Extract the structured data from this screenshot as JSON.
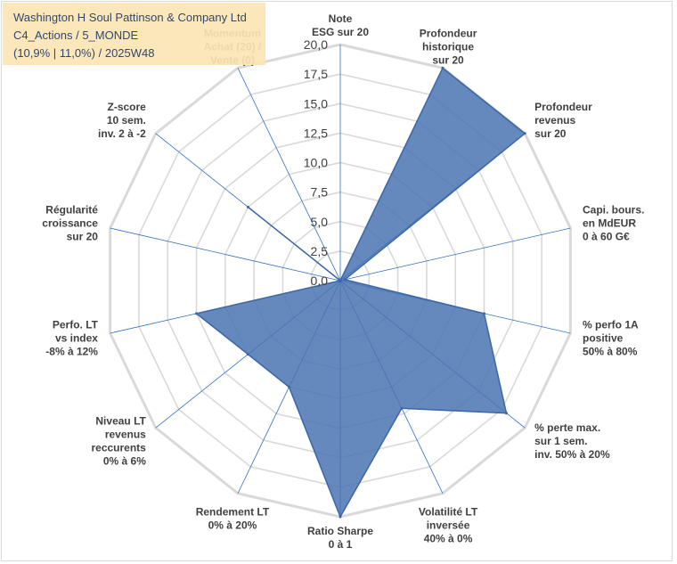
{
  "title": {
    "line1": "Washington H Soul Pattinson & Company Ltd",
    "line2": "C4_Actions / 5_MONDE",
    "line3": "(10,9% | 11,0%) / 2025W48"
  },
  "colors": {
    "fill": "#4a74b0",
    "stroke": "#3b66a7",
    "grid": "#d9d9d9",
    "spoke": "#2f6fbf",
    "title_bg": "#fbe6b4"
  },
  "chart_data": {
    "type": "radar",
    "scale_min": 0,
    "scale_max": 20,
    "tick_labels": [
      "0,0",
      "2,5",
      "5,0",
      "7,5",
      "10,0",
      "12,5",
      "15,0",
      "17,5",
      "20,0"
    ],
    "axes": [
      {
        "label": [
          "Note",
          "ESG sur 20"
        ],
        "value": 0
      },
      {
        "label": [
          "Profondeur",
          "historique",
          "sur 20"
        ],
        "value": 20
      },
      {
        "label": [
          "Profondeur",
          "revenus",
          "sur 20"
        ],
        "value": 20
      },
      {
        "label": [
          "Capi. bours.",
          "en MdEUR",
          "0 à 60 G€"
        ],
        "value": 0.4
      },
      {
        "label": [
          "% perfo 1A",
          "positive",
          "50% à 80%"
        ],
        "value": 12.5
      },
      {
        "label": [
          "% perte max.",
          "sur 1 sem.",
          "inv. 50% à 20%"
        ],
        "value": 18
      },
      {
        "label": [
          "Volatilité LT",
          "inversée",
          "40% à 0%"
        ],
        "value": 12
      },
      {
        "label": [
          "Ratio Sharpe",
          "0 à 1"
        ],
        "value": 20
      },
      {
        "label": [
          "Rendement LT",
          "0% à 20%"
        ],
        "value": 10
      },
      {
        "label": [
          "Niveau LT",
          "revenus",
          "reccurents",
          "0% à 6%"
        ],
        "value": 10
      },
      {
        "label": [
          "Perfo. LT",
          "vs index",
          "-8% à 12%"
        ],
        "value": 12.5
      },
      {
        "label": [
          "Régularité",
          "croissance",
          "sur 20"
        ],
        "value": 0
      },
      {
        "label": [
          "Z-score",
          "10 sem.",
          "inv. 2 à -2"
        ],
        "value": 10
      },
      {
        "label": [
          "Momentum",
          "Achat (20) /",
          "Vente (0)"
        ],
        "value": 0
      }
    ]
  }
}
